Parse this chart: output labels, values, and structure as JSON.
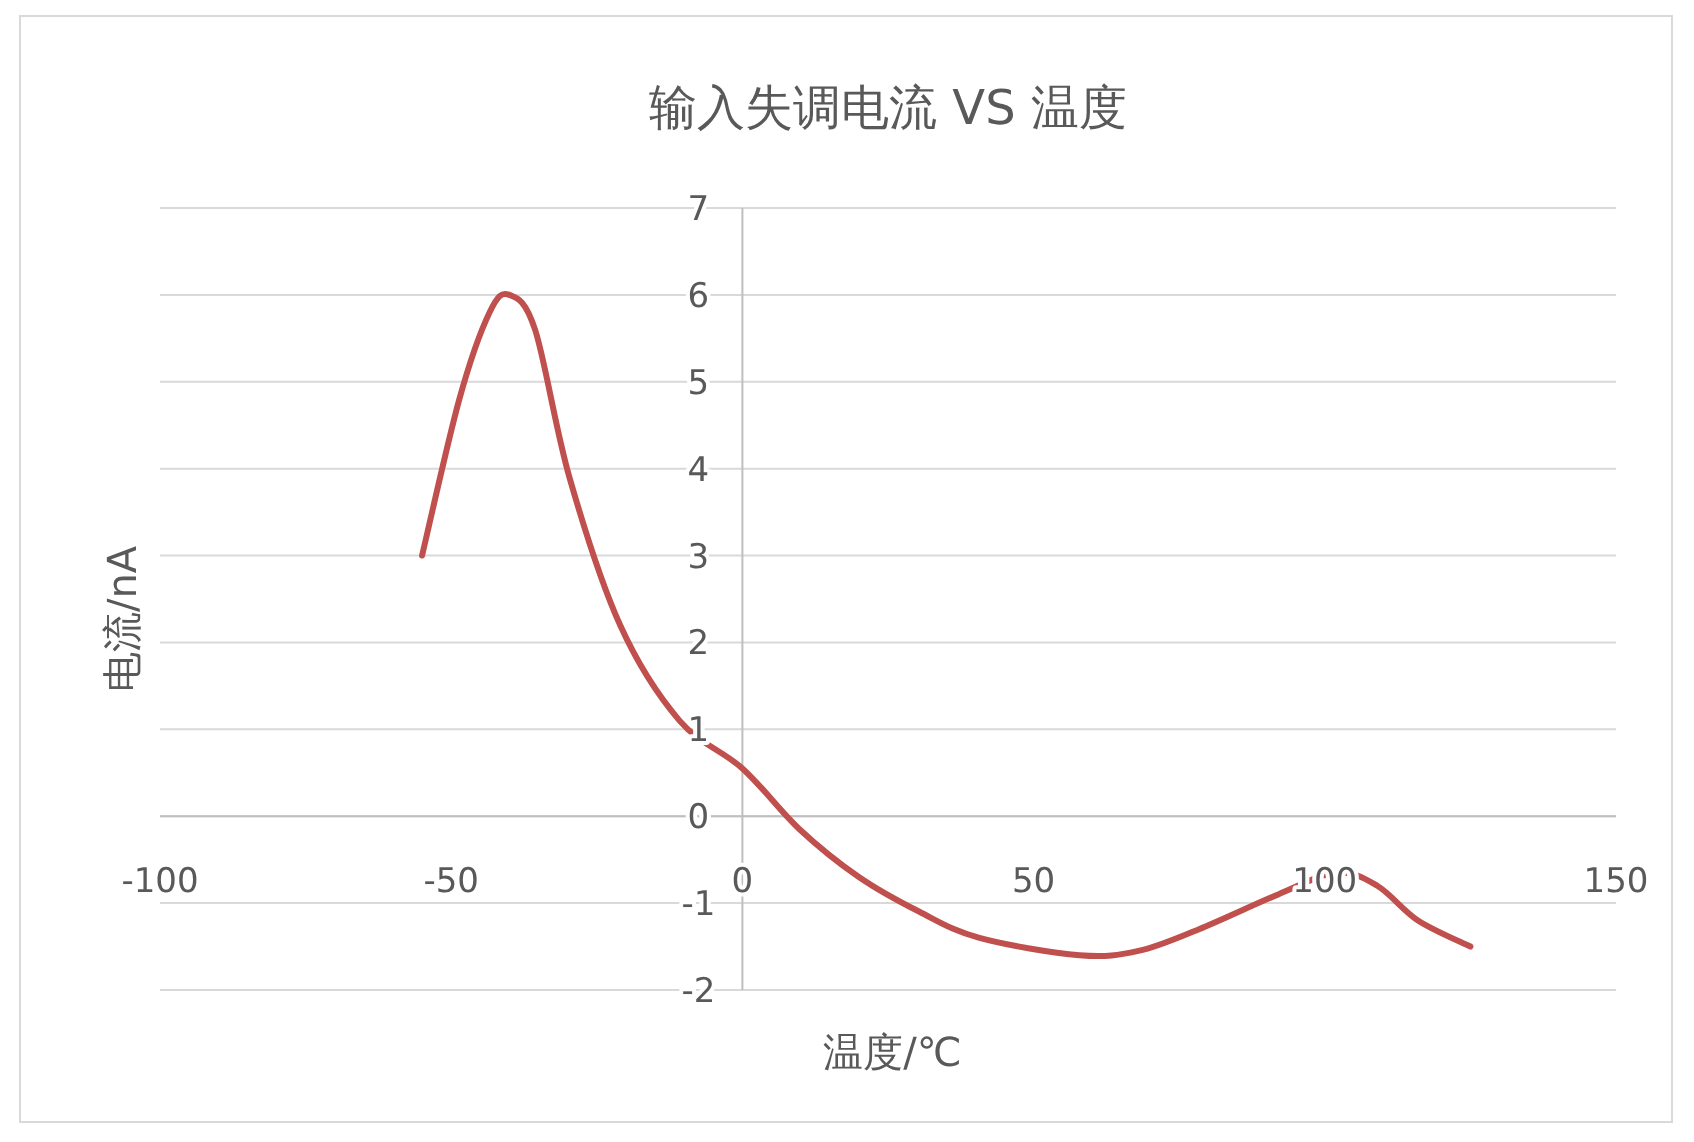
{
  "chart_data": {
    "type": "line",
    "title": "输入失调电流 VS 温度",
    "xlabel": "温度/℃",
    "ylabel": "电流/nA",
    "xlim": [
      -100,
      150
    ],
    "xticks": [
      -100,
      -50,
      0,
      50,
      100,
      150
    ],
    "ylim": [
      -2,
      7
    ],
    "yticks": [
      -2,
      -1,
      0,
      1,
      2,
      3,
      4,
      5,
      6,
      7
    ],
    "grid": "y",
    "marker": "none",
    "line_style": "solid",
    "series": [
      {
        "color": "#c0504d",
        "x": [
          -55,
          -48.6,
          -43.4,
          -40,
          -35.6,
          -29.7,
          -21,
          -10.8,
          0,
          9.8,
          20,
          30.4,
          40.7,
          57.9,
          68,
          78.4,
          92,
          102,
          109,
          116,
          125
        ],
        "values": [
          3.0,
          4.8,
          5.8,
          6.0,
          5.6,
          3.9,
          2.2,
          1.1,
          0.55,
          -0.15,
          -0.7,
          -1.1,
          -1.4,
          -1.6,
          -1.55,
          -1.3,
          -0.9,
          -0.65,
          -0.8,
          -1.2,
          -1.5
        ]
      }
    ]
  }
}
